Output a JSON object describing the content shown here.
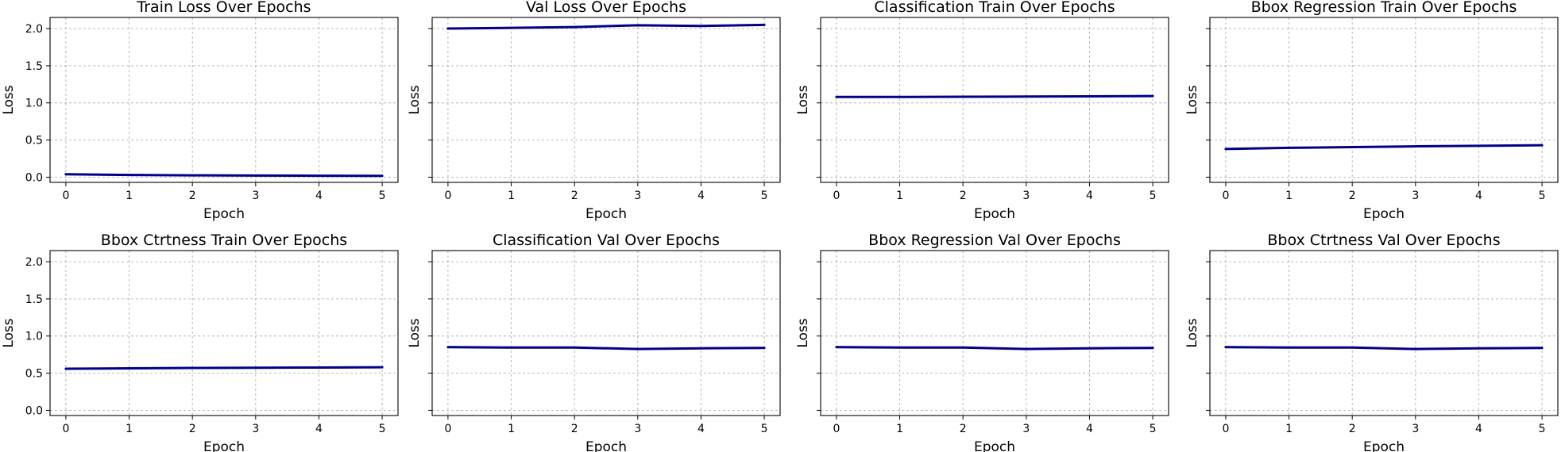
{
  "chart_data": [
    {
      "type": "line",
      "title": "Train Loss Over Epochs",
      "xlabel": "Epoch",
      "ylabel": "Loss",
      "x": [
        0,
        1,
        2,
        3,
        4,
        5
      ],
      "series": [
        {
          "values": [
            0.04,
            0.03,
            0.025,
            0.022,
            0.02,
            0.018
          ]
        }
      ],
      "xlim": [
        -0.25,
        5.25
      ],
      "ylim": [
        -0.07,
        2.15
      ],
      "xticks": [
        "0",
        "1",
        "2",
        "3",
        "4",
        "5"
      ],
      "yticks": [
        "0.0",
        "0.5",
        "1.0",
        "1.5",
        "2.0"
      ],
      "grid": true,
      "line_color": "#00008B"
    },
    {
      "type": "line",
      "title": "Val Loss Over Epochs",
      "xlabel": "Epoch",
      "ylabel": "Loss",
      "x": [
        0,
        1,
        2,
        3,
        4,
        5
      ],
      "series": [
        {
          "values": [
            2.0,
            2.01,
            2.02,
            2.045,
            2.035,
            2.05
          ]
        }
      ],
      "xlim": [
        -0.25,
        5.25
      ],
      "ylim": [
        -0.07,
        2.15
      ],
      "xticks": [
        "0",
        "1",
        "2",
        "3",
        "4",
        "5"
      ],
      "yticks": [],
      "grid": true,
      "line_color": "#00008B"
    },
    {
      "type": "line",
      "title": "Classification Train Over Epochs",
      "xlabel": "Epoch",
      "ylabel": "Loss",
      "x": [
        0,
        1,
        2,
        3,
        4,
        5
      ],
      "series": [
        {
          "values": [
            1.08,
            1.08,
            1.082,
            1.085,
            1.088,
            1.092
          ]
        }
      ],
      "xlim": [
        -0.25,
        5.25
      ],
      "ylim": [
        -0.07,
        2.15
      ],
      "xticks": [
        "0",
        "1",
        "2",
        "3",
        "4",
        "5"
      ],
      "yticks": [],
      "grid": true,
      "line_color": "#00008B"
    },
    {
      "type": "line",
      "title": "Bbox Regression Train Over Epochs",
      "xlabel": "Epoch",
      "ylabel": "Loss",
      "x": [
        0,
        1,
        2,
        3,
        4,
        5
      ],
      "series": [
        {
          "values": [
            0.38,
            0.395,
            0.405,
            0.415,
            0.422,
            0.43
          ]
        }
      ],
      "xlim": [
        -0.25,
        5.25
      ],
      "ylim": [
        -0.07,
        2.15
      ],
      "xticks": [
        "0",
        "1",
        "2",
        "3",
        "4",
        "5"
      ],
      "yticks": [],
      "grid": true,
      "line_color": "#00008B"
    },
    {
      "type": "line",
      "title": "Bbox Ctrtness Train Over Epochs",
      "xlabel": "Epoch",
      "ylabel": "Loss",
      "x": [
        0,
        1,
        2,
        3,
        4,
        5
      ],
      "series": [
        {
          "values": [
            0.56,
            0.565,
            0.57,
            0.573,
            0.576,
            0.58
          ]
        }
      ],
      "xlim": [
        -0.25,
        5.25
      ],
      "ylim": [
        -0.07,
        2.15
      ],
      "xticks": [
        "0",
        "1",
        "2",
        "3",
        "4",
        "5"
      ],
      "yticks": [
        "0.0",
        "0.5",
        "1.0",
        "1.5",
        "2.0"
      ],
      "grid": true,
      "line_color": "#00008B"
    },
    {
      "type": "line",
      "title": "Classification Val Over Epochs",
      "xlabel": "Epoch",
      "ylabel": "Loss",
      "x": [
        0,
        1,
        2,
        3,
        4,
        5
      ],
      "series": [
        {
          "values": [
            0.85,
            0.845,
            0.845,
            0.825,
            0.835,
            0.84
          ]
        }
      ],
      "xlim": [
        -0.25,
        5.25
      ],
      "ylim": [
        -0.07,
        2.15
      ],
      "xticks": [
        "0",
        "1",
        "2",
        "3",
        "4",
        "5"
      ],
      "yticks": [],
      "grid": true,
      "line_color": "#00008B"
    },
    {
      "type": "line",
      "title": "Bbox Regression Val Over Epochs",
      "xlabel": "Epoch",
      "ylabel": "Loss",
      "x": [
        0,
        1,
        2,
        3,
        4,
        5
      ],
      "series": [
        {
          "values": [
            0.85,
            0.845,
            0.845,
            0.825,
            0.835,
            0.84
          ]
        }
      ],
      "xlim": [
        -0.25,
        5.25
      ],
      "ylim": [
        -0.07,
        2.15
      ],
      "xticks": [
        "0",
        "1",
        "2",
        "3",
        "4",
        "5"
      ],
      "yticks": [],
      "grid": true,
      "line_color": "#00008B"
    },
    {
      "type": "line",
      "title": "Bbox Ctrtness Val Over Epochs",
      "xlabel": "Epoch",
      "ylabel": "Loss",
      "x": [
        0,
        1,
        2,
        3,
        4,
        5
      ],
      "series": [
        {
          "values": [
            0.85,
            0.845,
            0.845,
            0.825,
            0.835,
            0.84
          ]
        }
      ],
      "xlim": [
        -0.25,
        5.25
      ],
      "ylim": [
        -0.07,
        2.15
      ],
      "xticks": [
        "0",
        "1",
        "2",
        "3",
        "4",
        "5"
      ],
      "yticks": [],
      "grid": true,
      "line_color": "#00008B"
    }
  ]
}
